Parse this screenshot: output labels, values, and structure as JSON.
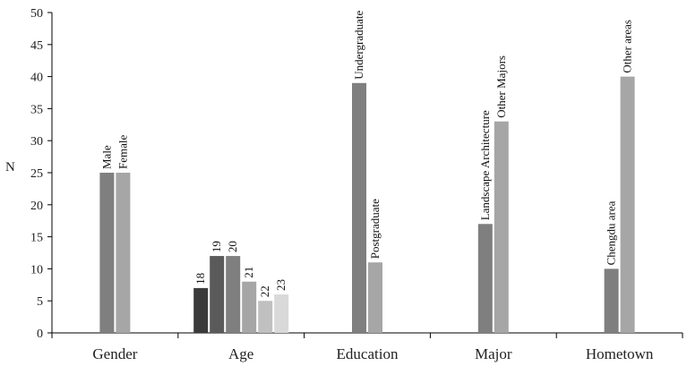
{
  "chart_data": {
    "type": "bar",
    "ylabel": "N",
    "ylim": [
      0,
      50
    ],
    "yticks": [
      0,
      5,
      10,
      15,
      20,
      25,
      30,
      35,
      40,
      45,
      50
    ],
    "grid": false,
    "groups": [
      {
        "category": "Gender",
        "bars": [
          {
            "label": "Male",
            "value": 25,
            "color": "#7f7f7f"
          },
          {
            "label": "Female",
            "value": 25,
            "color": "#a6a6a6"
          }
        ]
      },
      {
        "category": "Age",
        "bars": [
          {
            "label": "18",
            "value": 7,
            "color": "#3a3a3a"
          },
          {
            "label": "19",
            "value": 12,
            "color": "#5a5a5a"
          },
          {
            "label": "20",
            "value": 12,
            "color": "#7f7f7f"
          },
          {
            "label": "21",
            "value": 8,
            "color": "#a6a6a6"
          },
          {
            "label": "22",
            "value": 5,
            "color": "#c0c0c0"
          },
          {
            "label": "23",
            "value": 6,
            "color": "#d9d9d9"
          }
        ]
      },
      {
        "category": "Education",
        "bars": [
          {
            "label": "Undergraduate",
            "value": 39,
            "color": "#7f7f7f"
          },
          {
            "label": "Postgraduate",
            "value": 11,
            "color": "#a6a6a6"
          }
        ]
      },
      {
        "category": "Major",
        "bars": [
          {
            "label": "Landscape Architecture",
            "value": 17,
            "color": "#7f7f7f"
          },
          {
            "label": "Other Majors",
            "value": 33,
            "color": "#a6a6a6"
          }
        ]
      },
      {
        "category": "Hometown",
        "bars": [
          {
            "label": "Chengdu area",
            "value": 10,
            "color": "#7f7f7f"
          },
          {
            "label": "Other areas",
            "value": 40,
            "color": "#a6a6a6"
          }
        ]
      }
    ]
  }
}
